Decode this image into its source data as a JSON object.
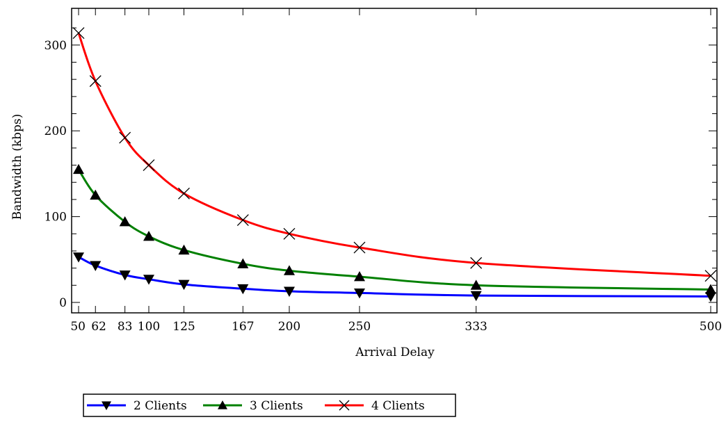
{
  "chart_data": {
    "type": "line",
    "title": "",
    "xlabel": "Arrival Delay",
    "ylabel": "Bandwidth (kbps)",
    "x": [
      50,
      62,
      83,
      100,
      125,
      167,
      200,
      250,
      333,
      500
    ],
    "x_tick_labels": [
      "50",
      "62",
      "83",
      "100",
      "125",
      "167",
      "200",
      "250",
      "333",
      "500"
    ],
    "xlim": [
      50,
      500
    ],
    "ylim": [
      0,
      320
    ],
    "y_ticks": [
      0,
      100,
      200,
      300
    ],
    "grid": false,
    "legend_position": "bottom-left",
    "series": [
      {
        "name": "2 Clients",
        "color": "#0000ff",
        "marker": "triangle-down",
        "values": [
          53,
          43,
          32,
          27,
          21,
          16,
          13,
          11,
          8,
          7
        ]
      },
      {
        "name": "3 Clients",
        "color": "#008000",
        "marker": "triangle-up",
        "values": [
          155,
          125,
          94,
          77,
          61,
          45,
          37,
          30,
          20,
          15
        ]
      },
      {
        "name": "4 Clients",
        "color": "#ff0000",
        "marker": "x",
        "values": [
          314,
          258,
          192,
          160,
          127,
          96,
          80,
          64,
          46,
          31
        ]
      }
    ]
  }
}
